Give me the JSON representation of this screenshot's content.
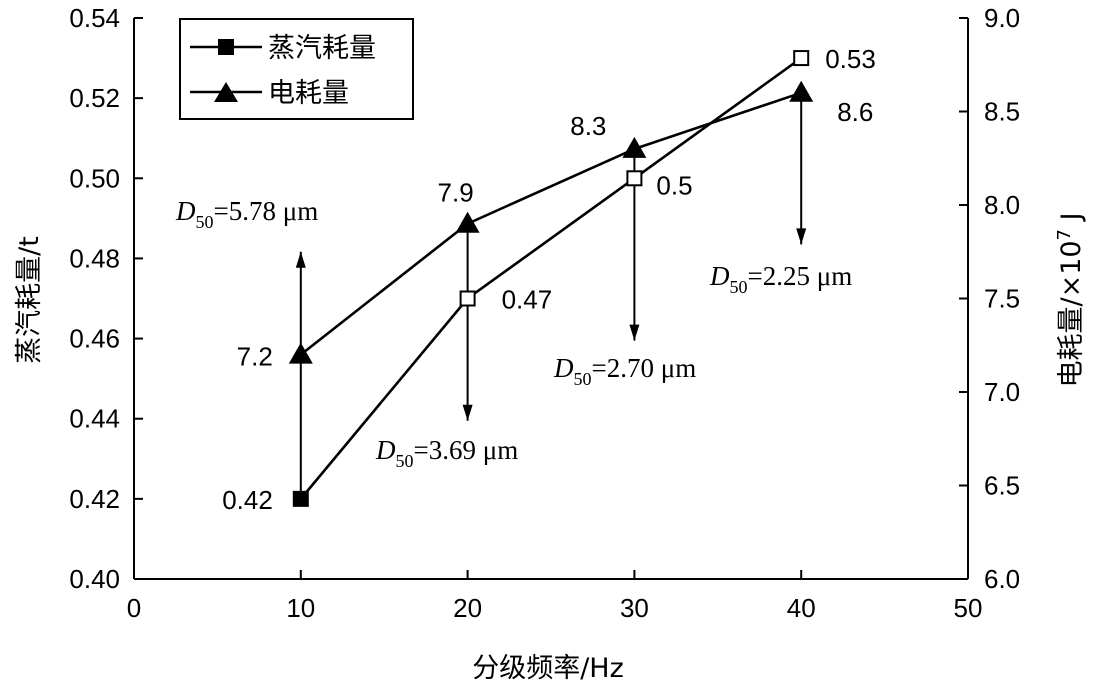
{
  "chart_data": {
    "type": "line",
    "x": [
      10,
      20,
      30,
      40
    ],
    "xlim": [
      0,
      50
    ],
    "xticks": [
      "0",
      "10",
      "20",
      "30",
      "40",
      "50"
    ],
    "xlabel": "分级频率/Hz",
    "left_axis": {
      "label": "蒸汽耗量/t",
      "ylim": [
        0.4,
        0.54
      ],
      "ticks": [
        "0.40",
        "0.42",
        "0.44",
        "0.46",
        "0.48",
        "0.50",
        "0.52",
        "0.54"
      ]
    },
    "right_axis": {
      "label": "电耗量/×10",
      "label_sup": "7",
      "label_unit": " J",
      "ylim": [
        6.0,
        9.0
      ],
      "ticks": [
        "6.0",
        "6.5",
        "7.0",
        "7.5",
        "8.0",
        "8.5",
        "9.0"
      ]
    },
    "series": [
      {
        "name": "蒸汽耗量",
        "axis": "left",
        "marker": "square",
        "values": [
          0.42,
          0.47,
          0.5,
          0.53
        ],
        "labels": [
          "0.42",
          "0.47",
          "0.5",
          "0.53"
        ]
      },
      {
        "name": "电耗量",
        "axis": "right",
        "marker": "triangle",
        "values": [
          7.2,
          7.9,
          8.3,
          8.6
        ],
        "labels": [
          "7.2",
          "7.9",
          "8.3",
          "8.6"
        ]
      }
    ],
    "annotations": [
      {
        "x": 10,
        "d_label": "D",
        "d_sub": "50",
        "text": "=5.78 μm"
      },
      {
        "x": 20,
        "d_label": "D",
        "d_sub": "50",
        "text": "=3.69 μm"
      },
      {
        "x": 30,
        "d_label": "D",
        "d_sub": "50",
        "text": "=2.70 μm"
      },
      {
        "x": 40,
        "d_label": "D",
        "d_sub": "50",
        "text": "=2.25 μm"
      }
    ],
    "legend_position": "top-left"
  }
}
